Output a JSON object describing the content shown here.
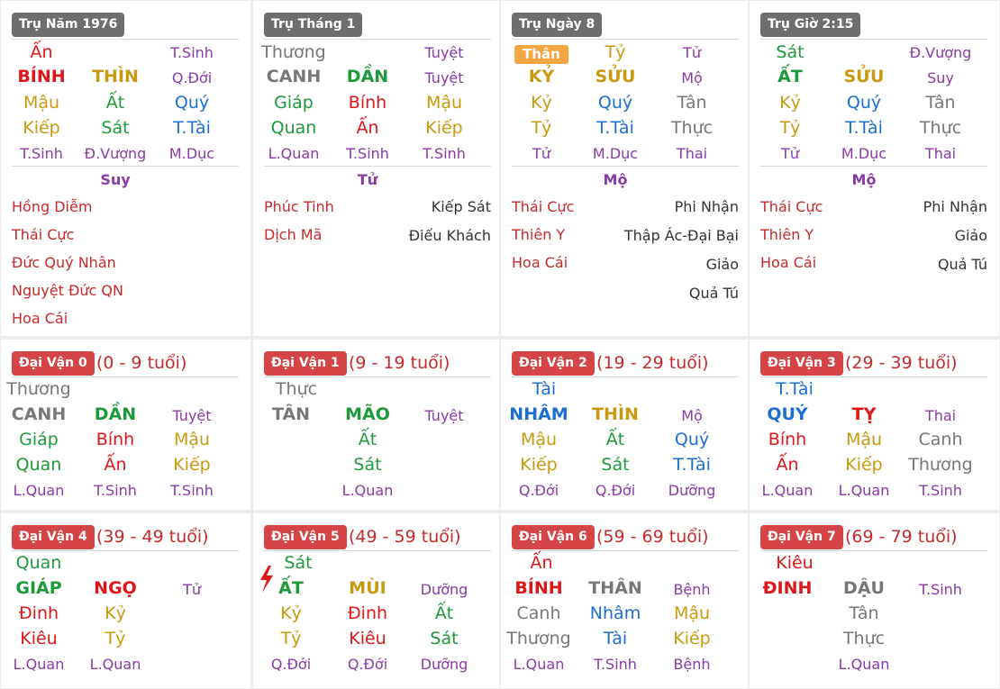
{
  "colors": {
    "red": "#e0161b",
    "green": "#1e9a3b",
    "gold": "#c89a0f",
    "blue": "#1c6fd1",
    "gray": "#777777",
    "purple": "#8a3aa6",
    "star": "#c62a2a"
  },
  "pillars": [
    {
      "label": "Trụ Năm 1976",
      "row1": {
        "left": "Ấn",
        "right": "T.Sinh"
      },
      "row2": [
        "BÍNH",
        "THÌN",
        "Q.Đới"
      ],
      "hidden": [
        [
          "Mậu",
          "Ất",
          "Quý"
        ],
        [
          "Kiếp",
          "Sát",
          "T.Tài"
        ]
      ],
      "row5": [
        "T.Sinh",
        "Đ.Vượng",
        "M.Dục"
      ],
      "status": "Suy",
      "stars_left": [
        "Hồng Diễm",
        "Thái Cực",
        "Đức Quý Nhân",
        "Nguyệt Đức QN",
        "Hoa Cái"
      ],
      "stars_right": []
    },
    {
      "label": "Trụ Tháng 1",
      "row1": {
        "left": "Thương",
        "right": "Tuyệt"
      },
      "row2": [
        "CANH",
        "DẦN",
        "Tuyệt"
      ],
      "hidden": [
        [
          "Giáp",
          "Bính",
          "Mậu"
        ],
        [
          "Quan",
          "Ấn",
          "Kiếp"
        ]
      ],
      "row5": [
        "L.Quan",
        "T.Sinh",
        "T.Sinh"
      ],
      "status": "Tử",
      "stars_left": [
        "Phúc Tinh",
        "Dịch Mã"
      ],
      "stars_right": [
        "Kiếp Sát",
        "Điếu Khách"
      ]
    },
    {
      "label": "Trụ Ngày 8",
      "row1": {
        "left": "Thân",
        "mid": "Tỷ",
        "right": "Tử"
      },
      "row2": [
        "KỶ",
        "SỬU",
        "Mộ"
      ],
      "hidden": [
        [
          "Kỷ",
          "Quý",
          "Tân"
        ],
        [
          "Tỷ",
          "T.Tài",
          "Thực"
        ]
      ],
      "row5": [
        "Tử",
        "M.Dục",
        "Thai"
      ],
      "status": "Mộ",
      "stars_left": [
        "Thái Cực",
        "Thiên Y",
        "Hoa Cái"
      ],
      "stars_right": [
        "Phi Nhận",
        "Thập Ác-Đại Bại",
        "Giảo",
        "Quả Tú"
      ]
    },
    {
      "label": "Trụ Giờ 2:15",
      "row1": {
        "left": "Sát",
        "right": "Đ.Vượng"
      },
      "row2": [
        "ẤT",
        "SỬU",
        "Suy"
      ],
      "hidden": [
        [
          "Kỷ",
          "Quý",
          "Tân"
        ],
        [
          "Tỷ",
          "T.Tài",
          "Thực"
        ]
      ],
      "row5": [
        "Tử",
        "M.Dục",
        "Thai"
      ],
      "status": "Mộ",
      "stars_left": [
        "Thái Cực",
        "Thiên Y",
        "Hoa Cái"
      ],
      "stars_right": [
        "Phi Nhận",
        "Giảo",
        "Quả Tú"
      ]
    }
  ],
  "dai_van": [
    {
      "label": "Đại Vận 0",
      "age": "(0 - 9 tuổi)",
      "top": "Thương",
      "row2": [
        "CANH",
        "DẦN",
        "Tuyệt"
      ],
      "hidden": [
        [
          "Giáp",
          "Bính",
          "Mậu"
        ],
        [
          "Quan",
          "Ấn",
          "Kiếp"
        ]
      ],
      "row5": [
        "L.Quan",
        "T.Sinh",
        "T.Sinh"
      ]
    },
    {
      "label": "Đại Vận 1",
      "age": "(9 - 19 tuổi)",
      "top": "Thực",
      "row2": [
        "TÂN",
        "MÃO",
        "Tuyệt"
      ],
      "hidden": [
        [
          "",
          "Ất",
          ""
        ],
        [
          "",
          "Sát",
          ""
        ]
      ],
      "row5": [
        "",
        "L.Quan",
        ""
      ]
    },
    {
      "label": "Đại Vận 2",
      "age": "(19 - 29 tuổi)",
      "top": "Tài",
      "row2": [
        "NHÂM",
        "THÌN",
        "Mộ"
      ],
      "hidden": [
        [
          "Mậu",
          "Ất",
          "Quý"
        ],
        [
          "Kiếp",
          "Sát",
          "T.Tài"
        ]
      ],
      "row5": [
        "Q.Đới",
        "Q.Đới",
        "Dưỡng"
      ]
    },
    {
      "label": "Đại Vận 3",
      "age": "(29 - 39 tuổi)",
      "top": "T.Tài",
      "row2": [
        "QUÝ",
        "TỴ",
        "Thai"
      ],
      "hidden": [
        [
          "Bính",
          "Mậu",
          "Canh"
        ],
        [
          "Ấn",
          "Kiếp",
          "Thương"
        ]
      ],
      "row5": [
        "L.Quan",
        "L.Quan",
        "T.Sinh"
      ]
    },
    {
      "label": "Đại Vận 4",
      "age": "(39 - 49 tuổi)",
      "top": "Quan",
      "row2": [
        "GIÁP",
        "NGỌ",
        "Tử"
      ],
      "hidden": [
        [
          "Đinh",
          "Kỷ",
          ""
        ],
        [
          "Kiêu",
          "Tỷ",
          ""
        ]
      ],
      "row5": [
        "L.Quan",
        "L.Quan",
        ""
      ]
    },
    {
      "label": "Đại Vận 5",
      "age": "(49 - 59 tuổi)",
      "top": "Sát",
      "row2": [
        "ẤT",
        "MÙI",
        "Dưỡng"
      ],
      "hidden": [
        [
          "Kỷ",
          "Đinh",
          "Ất"
        ],
        [
          "Tỷ",
          "Kiêu",
          "Sát"
        ]
      ],
      "row5": [
        "Q.Đới",
        "Q.Đới",
        "Dưỡng"
      ]
    },
    {
      "label": "Đại Vận 6",
      "age": "(59 - 69 tuổi)",
      "top": "Ấn",
      "row2": [
        "BÍNH",
        "THÂN",
        "Bệnh"
      ],
      "hidden": [
        [
          "Canh",
          "Nhâm",
          "Mậu"
        ],
        [
          "Thương",
          "Tài",
          "Kiếp"
        ]
      ],
      "row5": [
        "L.Quan",
        "T.Sinh",
        "Bệnh"
      ]
    },
    {
      "label": "Đại Vận 7",
      "age": "(69 - 79 tuổi)",
      "top": "Kiêu",
      "row2": [
        "ĐINH",
        "DẬU",
        "T.Sinh"
      ],
      "hidden": [
        [
          "",
          "Tân",
          ""
        ],
        [
          "",
          "Thực",
          ""
        ]
      ],
      "row5": [
        "",
        "L.Quan",
        ""
      ]
    }
  ]
}
